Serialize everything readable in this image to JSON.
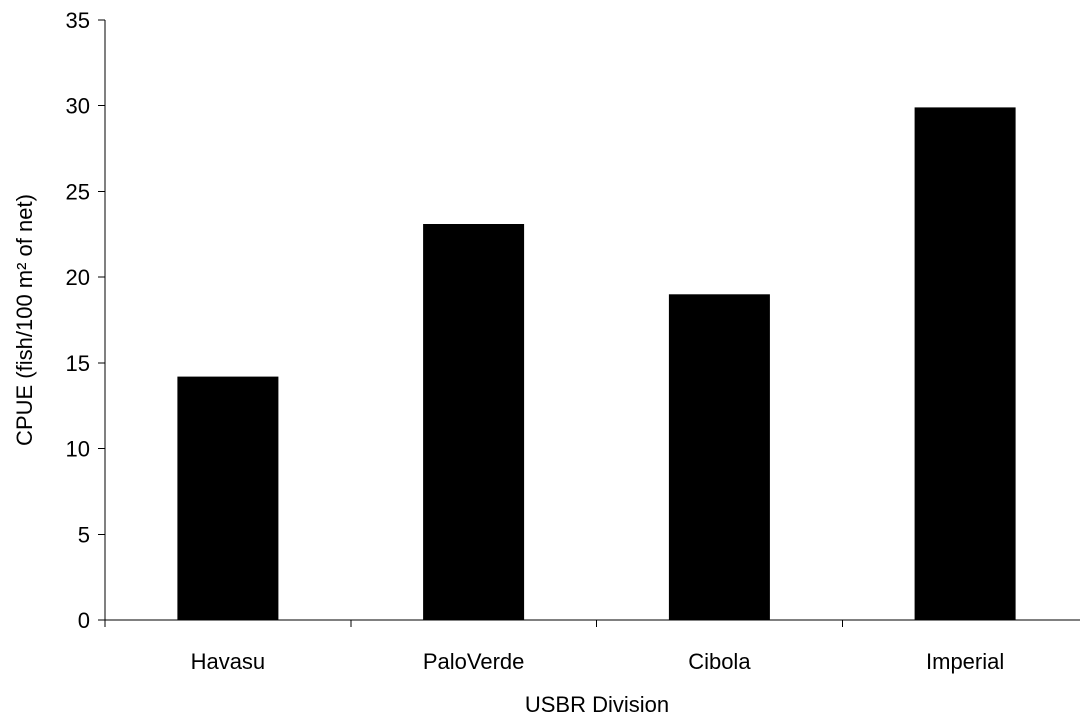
{
  "chart_data": {
    "type": "bar",
    "title": "",
    "xlabel": "USBR Division",
    "ylabel": "CPUE (fish/100 m² of net)",
    "categories": [
      "Havasu",
      "PaloVerde",
      "Cibola",
      "Imperial"
    ],
    "values": [
      14.2,
      23.1,
      19.0,
      29.9
    ],
    "ylim": [
      0,
      35
    ],
    "yticks": [
      0,
      5,
      10,
      15,
      20,
      25,
      30,
      35
    ],
    "grid": false,
    "legend": "none",
    "bar_color": "#000000"
  }
}
